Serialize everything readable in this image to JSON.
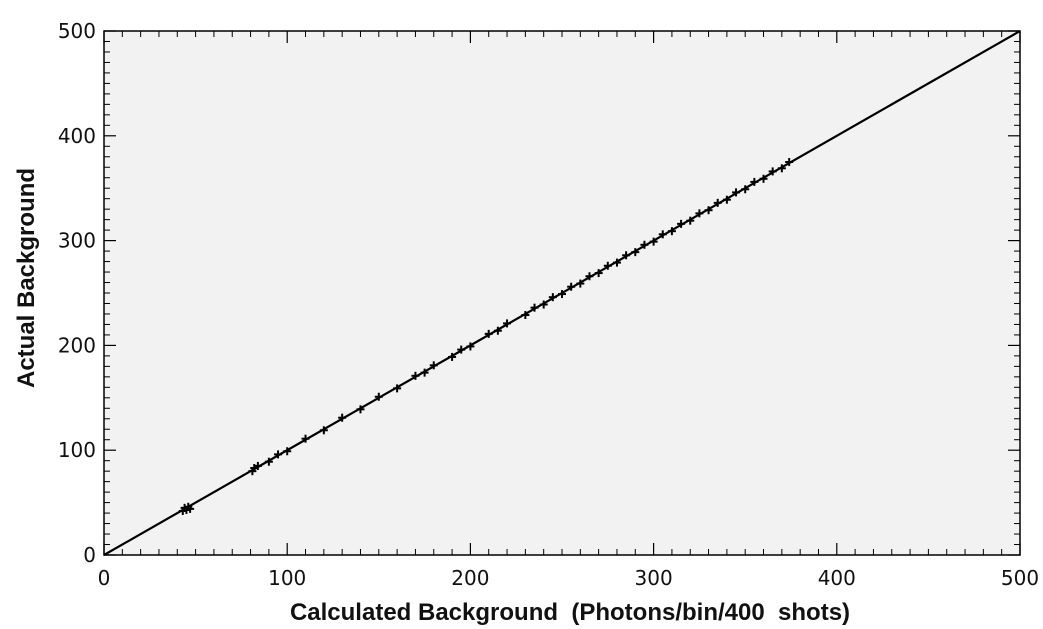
{
  "chart_data": {
    "type": "scatter",
    "xlabel": "Calculated Background  (Photons/bin/400  shots)",
    "ylabel": "Actual Background",
    "xlim": [
      0,
      500
    ],
    "ylim": [
      0,
      500
    ],
    "x_ticks": [
      0,
      100,
      200,
      300,
      400,
      500
    ],
    "y_ticks": [
      0,
      100,
      200,
      300,
      400,
      500
    ],
    "x_tick_labels": [
      "0",
      "100",
      "200",
      "300",
      "400",
      "500"
    ],
    "y_tick_labels": [
      "0",
      "100",
      "200",
      "300",
      "400",
      "500"
    ],
    "minor_tick_step": 10,
    "grid": false,
    "plot_background": "#f2f2f2",
    "line": {
      "x": [
        0,
        500
      ],
      "y": [
        0,
        500
      ],
      "color": "#000000"
    },
    "series": [
      {
        "marker_color": "#000000",
        "x": [
          43,
          44,
          45,
          46,
          47,
          81,
          82,
          84,
          90,
          95,
          100,
          110,
          120,
          130,
          140,
          150,
          160,
          170,
          175,
          180,
          190,
          195,
          200,
          210,
          215,
          220,
          230,
          235,
          240,
          245,
          250,
          255,
          260,
          265,
          270,
          275,
          280,
          285,
          290,
          295,
          300,
          305,
          310,
          315,
          320,
          325,
          330,
          335,
          340,
          345,
          350,
          355,
          360,
          365,
          370,
          374
        ],
        "y": [
          42,
          45,
          43,
          46,
          44,
          80,
          83,
          85,
          89,
          96,
          99,
          111,
          119,
          131,
          139,
          151,
          159,
          171,
          174,
          181,
          189,
          196,
          199,
          211,
          214,
          221,
          229,
          236,
          239,
          246,
          249,
          256,
          259,
          266,
          269,
          276,
          279,
          286,
          289,
          296,
          299,
          306,
          309,
          316,
          319,
          326,
          329,
          336,
          339,
          346,
          349,
          356,
          359,
          366,
          369,
          375
        ]
      }
    ]
  }
}
